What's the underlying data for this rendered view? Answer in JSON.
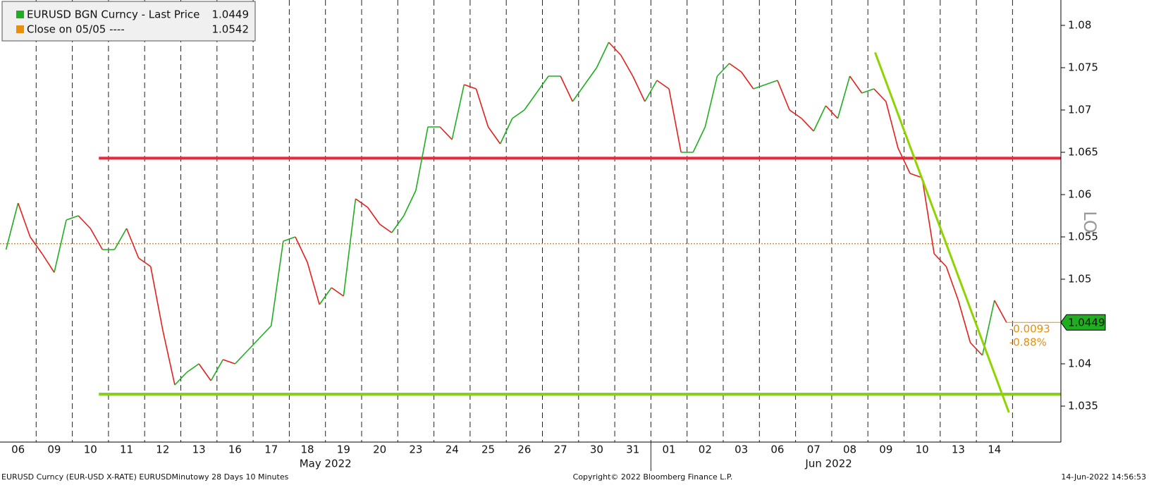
{
  "chart_data": {
    "type": "line",
    "categories": [
      null,
      "06",
      null,
      null,
      "09",
      null,
      null,
      "10",
      null,
      null,
      "11",
      null,
      null,
      "12",
      null,
      null,
      "13",
      null,
      null,
      "16",
      null,
      null,
      "17",
      null,
      null,
      "18",
      null,
      null,
      "19",
      null,
      null,
      "20",
      null,
      null,
      "23",
      null,
      null,
      "24",
      null,
      null,
      "25",
      null,
      null,
      "26",
      null,
      null,
      "27",
      null,
      null,
      "30",
      null,
      null,
      "31",
      null,
      null,
      "01",
      null,
      null,
      "02",
      null,
      null,
      "03",
      null,
      null,
      "06",
      null,
      null,
      "07",
      null,
      null,
      "08",
      null,
      null,
      "09",
      null,
      null,
      "10",
      null,
      null,
      "13",
      null,
      null,
      "14",
      null
    ],
    "months": [
      "May 2022",
      "Jun 2022"
    ],
    "series": [
      {
        "name": "EURUSD BGN Curncy - Last Price",
        "last_label": "1.0449",
        "up_color": "#1fae1f",
        "down_color": "#e3201c",
        "values": [
          1.0535,
          1.059,
          1.055,
          1.053,
          1.0508,
          1.057,
          1.0575,
          1.056,
          1.0535,
          1.0535,
          1.056,
          1.0525,
          1.0515,
          1.044,
          1.0375,
          1.039,
          1.04,
          1.038,
          1.0405,
          1.04,
          1.0415,
          1.043,
          1.0445,
          1.0545,
          1.055,
          1.052,
          1.047,
          1.049,
          1.048,
          1.0595,
          1.0585,
          1.0565,
          1.0555,
          1.0575,
          1.0605,
          1.068,
          1.068,
          1.0665,
          1.073,
          1.0725,
          1.068,
          1.066,
          1.069,
          1.07,
          1.072,
          1.074,
          1.074,
          1.071,
          1.073,
          1.075,
          1.078,
          1.0765,
          1.074,
          1.071,
          1.0735,
          1.0725,
          1.065,
          1.065,
          1.068,
          1.074,
          1.0755,
          1.0745,
          1.0725,
          1.073,
          1.0735,
          1.07,
          1.069,
          1.0675,
          1.0705,
          1.069,
          1.074,
          1.072,
          1.0725,
          1.071,
          1.0655,
          1.0625,
          1.062,
          1.053,
          1.0515,
          1.0475,
          1.0425,
          1.041,
          1.0475,
          1.0449
        ]
      }
    ],
    "reference": {
      "name": "Close on 05/05 ----",
      "value": 1.0542,
      "label": "1.0542",
      "color": "#e8900a"
    },
    "change": {
      "value": -0.0093,
      "percent_label": "-0.88%",
      "color": "#e8900a"
    },
    "hlines": [
      {
        "value": 1.0643,
        "from": 7.7,
        "color": "#e8283c"
      },
      {
        "value": 1.03642,
        "from": 7.7,
        "color": "#86d01a"
      }
    ],
    "trend_line": {
      "x": [
        72.1,
        83.2
      ],
      "y": [
        1.0768,
        1.03425
      ],
      "color": "#8fd400"
    },
    "ylim": [
      1.03075,
      1.083
    ],
    "yticks": [
      1.035,
      1.04,
      1.05,
      1.055,
      1.06,
      1.065,
      1.07,
      1.075,
      1.08
    ],
    "side_label": "LO",
    "footer": {
      "left": "EURUSD Curncy (EUR-USD X-RATE) EURUSDMinutowy 28 Days 10 Minutes",
      "center": "Copyright© 2022 Bloomberg Finance L.P.",
      "right": "14-Jun-2022 14:56:53"
    }
  }
}
